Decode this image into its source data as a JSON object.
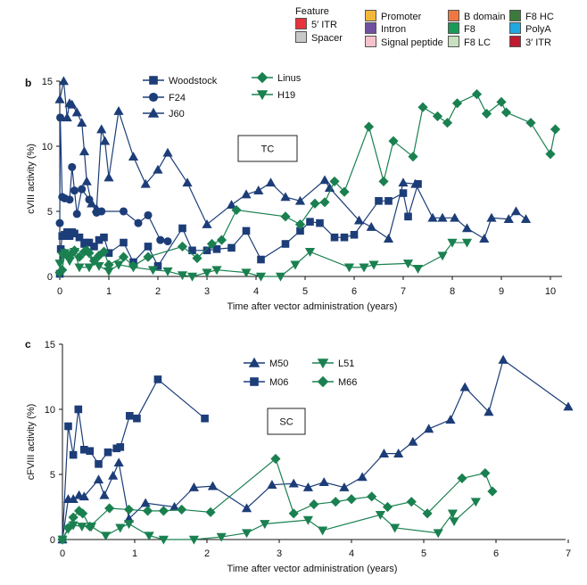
{
  "feature_legend": {
    "title": "Feature",
    "items": [
      {
        "label": "5′ ITR",
        "color": "#e8323c"
      },
      {
        "label": "Spacer",
        "color": "#c8c8c8"
      },
      {
        "label": "Promoter",
        "color": "#f2b83c"
      },
      {
        "label": "Intron",
        "color": "#7050a0"
      },
      {
        "label": "Signal peptide",
        "color": "#f6c2cc"
      },
      {
        "label": "B domain",
        "color": "#ee7840"
      },
      {
        "label": "F8",
        "color": "#1a9a58"
      },
      {
        "label": "F8 LC",
        "color": "#c8e0c0"
      },
      {
        "label": "F8 HC",
        "color": "#3c7a3c"
      },
      {
        "label": "PolyA",
        "color": "#20a8e0"
      },
      {
        "label": "3′ ITR",
        "color": "#c01a30"
      }
    ]
  },
  "colors": {
    "navy": "#1c3d78",
    "green": "#1a8050"
  },
  "chart_data": [
    {
      "panel": "b",
      "type": "line",
      "box_label": "TC",
      "xlabel": "Time after vector administration (years)",
      "ylabel": "cVIII activity (%)",
      "xlim": [
        0,
        10.2
      ],
      "ylim": [
        0,
        15
      ],
      "xticks": [
        0,
        1,
        2,
        3,
        4,
        5,
        6,
        7,
        8,
        9,
        10
      ],
      "yticks": [
        0,
        5,
        10,
        15
      ],
      "grid": false,
      "legend_position": "top-left",
      "series": [
        {
          "name": "Woodstock",
          "marker": "square",
          "color": "navy",
          "x": [
            0,
            0.02,
            0.05,
            0.1,
            0.15,
            0.2,
            0.25,
            0.3,
            0.4,
            0.5,
            0.55,
            0.6,
            0.7,
            0.8,
            0.9,
            1.0,
            1.3,
            1.5,
            1.8,
            2.0,
            2.5,
            2.7,
            3.0,
            3.2,
            3.5,
            3.8,
            4.1,
            4.6,
            4.9,
            5.1,
            5.3,
            5.6,
            5.8,
            6.0,
            6.5,
            6.7,
            7.0,
            7.1,
            7.3
          ],
          "y": [
            0.2,
            2.1,
            3.1,
            3.2,
            3.4,
            3.1,
            3.4,
            3.3,
            3.0,
            2.5,
            2.6,
            2.6,
            2.3,
            2.8,
            3.0,
            1.8,
            2.6,
            1.1,
            2.3,
            0.8,
            3.7,
            2.0,
            2.0,
            2.1,
            2.2,
            3.5,
            1.3,
            2.5,
            3.5,
            4.2,
            4.1,
            3.0,
            3.0,
            3.2,
            5.8,
            5.8,
            6.4,
            4.6,
            7.1
          ]
        },
        {
          "name": "F24",
          "marker": "circle",
          "color": "navy",
          "x": [
            0,
            0.01,
            0.05,
            0.1,
            0.2,
            0.25,
            0.3,
            0.35,
            0.45,
            0.6,
            0.75,
            0.85,
            1.3,
            1.6,
            1.8,
            2.05,
            2.2
          ],
          "y": [
            4.1,
            12.2,
            6.1,
            6.0,
            5.9,
            8.4,
            6.6,
            4.8,
            6.7,
            5.9,
            4.9,
            5.0,
            5.0,
            4.1,
            4.7,
            2.8,
            2.7
          ]
        },
        {
          "name": "J60",
          "marker": "triangle-up",
          "color": "navy",
          "x": [
            0,
            0.08,
            0.15,
            0.2,
            0.25,
            0.35,
            0.45,
            0.5,
            0.55,
            0.65,
            0.75,
            0.85,
            0.92,
            1.0,
            1.2,
            1.5,
            1.75,
            2.0,
            2.2,
            2.6,
            3.0,
            3.5,
            3.8,
            4.05,
            4.3,
            4.6,
            4.9,
            5.4,
            5.5,
            6.1,
            6.35,
            6.7,
            7.0,
            7.25,
            7.6,
            7.8,
            8.05,
            8.3,
            8.65,
            8.8,
            9.15,
            9.3,
            9.5
          ],
          "y": [
            13.6,
            15.0,
            12.2,
            13.3,
            13.2,
            12.6,
            11.8,
            9.6,
            7.3,
            5.6,
            5.2,
            11.3,
            10.4,
            7.6,
            12.7,
            9.2,
            7.1,
            8.2,
            9.5,
            7.2,
            4.0,
            5.5,
            6.3,
            6.6,
            7.2,
            6.1,
            5.8,
            7.4,
            6.8,
            4.3,
            3.8,
            2.9,
            7.2,
            7.1,
            4.5,
            4.5,
            4.5,
            3.7,
            2.9,
            4.5,
            4.4,
            5.0,
            4.4
          ]
        },
        {
          "name": "Linus",
          "marker": "diamond",
          "color": "green",
          "x": [
            0,
            0.05,
            0.1,
            0.15,
            0.2,
            0.25,
            0.3,
            0.4,
            0.5,
            0.55,
            0.6,
            0.7,
            0.8,
            0.9,
            1.0,
            1.3,
            1.5,
            1.8,
            2.5,
            2.8,
            3.1,
            3.3,
            3.6,
            4.6,
            4.9,
            5.2,
            5.4,
            5.6,
            5.8,
            6.3,
            6.6,
            6.8,
            7.2,
            7.4,
            7.7,
            7.9,
            8.1,
            8.5,
            8.7,
            9.0,
            9.1,
            9.6,
            10.0,
            10.1
          ],
          "y": [
            0.3,
            0.5,
            1.8,
            1.6,
            1.4,
            1.8,
            2.0,
            1.5,
            1.9,
            2.0,
            1.8,
            1.2,
            1.6,
            1.9,
            0.9,
            1.5,
            0.8,
            1.5,
            2.3,
            1.4,
            2.5,
            2.8,
            5.1,
            4.6,
            4.0,
            5.6,
            5.7,
            7.3,
            6.5,
            11.5,
            7.3,
            10.4,
            9.2,
            13.0,
            12.3,
            11.8,
            13.3,
            14.0,
            12.5,
            13.4,
            12.6,
            11.8,
            9.4,
            11.3
          ]
        },
        {
          "name": "H19",
          "marker": "triangle-down",
          "color": "green",
          "x": [
            0,
            0.05,
            0.1,
            0.2,
            0.3,
            0.4,
            0.6,
            0.7,
            0.8,
            1.0,
            1.2,
            1.5,
            1.9,
            2.2,
            2.5,
            2.7,
            3.0,
            3.2,
            3.8,
            4.1,
            4.5,
            4.8,
            5.1,
            5.9,
            6.2,
            6.4,
            7.1,
            7.3,
            7.8,
            8.0,
            8.3
          ],
          "y": [
            1.0,
            1.6,
            1.8,
            1.2,
            1.9,
            0.7,
            0.7,
            1.2,
            0.8,
            0.4,
            0.9,
            0.7,
            0.5,
            0.4,
            0.1,
            0.0,
            0.3,
            0.5,
            0.3,
            0.0,
            0.0,
            0.9,
            1.9,
            0.7,
            0.7,
            0.9,
            1.0,
            0.6,
            1.6,
            2.6,
            2.6
          ]
        }
      ]
    },
    {
      "panel": "c",
      "type": "line",
      "box_label": "SC",
      "xlabel": "Time after vector administration (years)",
      "ylabel": "cFVIII activity (%)",
      "xlim": [
        0,
        7
      ],
      "ylim": [
        0,
        15
      ],
      "xticks": [
        0,
        1,
        2,
        3,
        4,
        5,
        6,
        7
      ],
      "yticks": [
        0,
        5,
        10,
        15
      ],
      "grid": false,
      "legend_position": "top-center",
      "series": [
        {
          "name": "M50",
          "marker": "triangle-up",
          "color": "navy",
          "x": [
            0,
            0.08,
            0.15,
            0.23,
            0.3,
            0.5,
            0.58,
            0.7,
            0.78,
            0.92,
            1.15,
            1.55,
            1.82,
            2.08,
            2.55,
            2.9,
            3.2,
            3.4,
            3.62,
            3.9,
            4.15,
            4.45,
            4.65,
            4.85,
            5.07,
            5.37,
            5.57,
            5.9,
            6.1,
            7.0
          ],
          "y": [
            0,
            3.1,
            3.1,
            3.4,
            3.3,
            4.6,
            3.4,
            4.9,
            5.9,
            1.6,
            2.8,
            2.5,
            4.0,
            4.1,
            2.4,
            4.2,
            4.3,
            4.0,
            4.4,
            4.0,
            4.8,
            6.6,
            6.6,
            7.5,
            8.5,
            9.2,
            11.7,
            9.8,
            13.8,
            10.2
          ]
        },
        {
          "name": "M06",
          "marker": "square",
          "color": "navy",
          "x": [
            0,
            0.08,
            0.15,
            0.22,
            0.3,
            0.38,
            0.5,
            0.63,
            0.75,
            0.8,
            0.93,
            1.03,
            1.32,
            1.97
          ],
          "y": [
            0,
            8.7,
            6.5,
            10.0,
            6.9,
            6.8,
            5.8,
            6.7,
            7.0,
            7.1,
            9.5,
            9.3,
            12.3,
            9.3
          ]
        },
        {
          "name": "L51",
          "marker": "triangle-down",
          "color": "green",
          "x": [
            0,
            0.08,
            0.15,
            0.27,
            0.4,
            0.6,
            0.8,
            0.92,
            1.2,
            1.4,
            1.82,
            2.2,
            2.55,
            2.8,
            3.4,
            3.6,
            4.4,
            4.6,
            5.2,
            5.4,
            5.42,
            5.72
          ],
          "y": [
            0,
            0.8,
            1.1,
            1.0,
            1.0,
            0.3,
            0.9,
            1.2,
            0.3,
            0.0,
            0.0,
            0.2,
            0.5,
            1.2,
            1.5,
            0.7,
            1.9,
            0.9,
            0.5,
            2.0,
            1.4,
            2.9
          ]
        },
        {
          "name": "M66",
          "marker": "diamond",
          "color": "green",
          "x": [
            0,
            0.08,
            0.15,
            0.23,
            0.28,
            0.38,
            0.65,
            0.92,
            1.18,
            1.4,
            1.65,
            2.05,
            2.95,
            3.2,
            3.48,
            3.78,
            4.0,
            4.28,
            4.5,
            4.83,
            5.05,
            5.53,
            5.85,
            5.95
          ],
          "y": [
            0,
            0.9,
            1.7,
            2.2,
            2.0,
            1.0,
            2.4,
            2.3,
            2.2,
            2.2,
            2.3,
            2.1,
            6.2,
            2.0,
            2.7,
            2.9,
            3.1,
            3.3,
            2.5,
            2.9,
            2.0,
            4.7,
            5.1,
            3.7
          ]
        }
      ]
    }
  ]
}
